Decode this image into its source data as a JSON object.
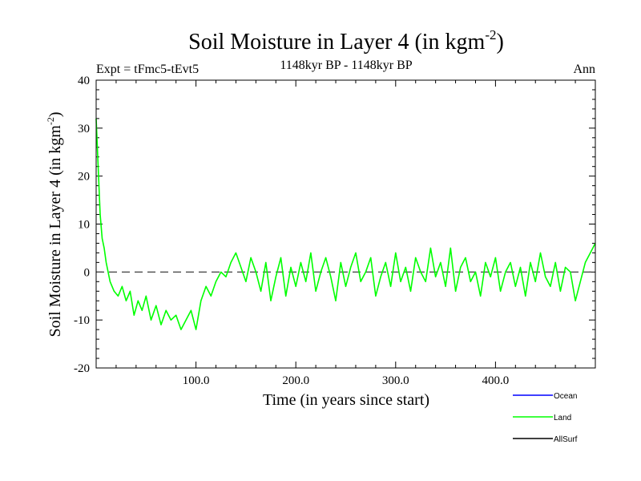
{
  "chart_data": {
    "type": "line",
    "title_main": "Soil Moisture in Layer 4 (in kgm",
    "title_sup": "-2",
    "title_close": ")",
    "subtitle": "1148kyr BP - 1148kyr BP",
    "expt_label": "Expt = tFmc5-tEvt5",
    "season_label": "Ann",
    "xlabel": "Time (in years since start)",
    "ylabel_main": "Soil Moisture in Layer 4 (in kgm",
    "ylabel_sup": "-2",
    "ylabel_close": ")",
    "xlim": [
      0,
      500
    ],
    "ylim": [
      -20,
      40
    ],
    "x_ticks": [
      100,
      200,
      300,
      400
    ],
    "x_tick_labels": [
      "100.0",
      "200.0",
      "300.0",
      "400.0"
    ],
    "y_ticks": [
      -20,
      -10,
      0,
      10,
      20,
      30,
      40
    ],
    "y_tick_labels": [
      "-20",
      "-10",
      "0",
      "10",
      "20",
      "30",
      "40"
    ],
    "zero_line": true,
    "legend": [
      {
        "name": "Ocean",
        "color": "#0000ff"
      },
      {
        "name": "Land",
        "color": "#00ff00"
      },
      {
        "name": "AllSurf",
        "color": "#000000"
      }
    ],
    "series": [
      {
        "name": "Land",
        "color": "#00ff00",
        "x": [
          0,
          2,
          4,
          6,
          8,
          10,
          14,
          18,
          22,
          26,
          30,
          34,
          38,
          42,
          46,
          50,
          55,
          60,
          65,
          70,
          75,
          80,
          85,
          90,
          95,
          100,
          105,
          110,
          115,
          120,
          125,
          130,
          135,
          140,
          145,
          150,
          155,
          160,
          165,
          170,
          175,
          180,
          185,
          190,
          195,
          200,
          205,
          210,
          215,
          220,
          225,
          230,
          235,
          240,
          245,
          250,
          255,
          260,
          265,
          270,
          275,
          280,
          285,
          290,
          295,
          300,
          305,
          310,
          315,
          320,
          325,
          330,
          335,
          340,
          345,
          350,
          355,
          360,
          365,
          370,
          375,
          380,
          385,
          390,
          395,
          400,
          405,
          410,
          415,
          420,
          425,
          430,
          435,
          440,
          445,
          450,
          455,
          460,
          465,
          470,
          475,
          480,
          485,
          490,
          495,
          500
        ],
        "values": [
          32,
          22,
          12,
          7,
          5,
          2,
          -2,
          -4,
          -5,
          -3,
          -6,
          -4,
          -9,
          -6,
          -8,
          -5,
          -10,
          -7,
          -11,
          -8,
          -10,
          -9,
          -12,
          -10,
          -8,
          -12,
          -6,
          -3,
          -5,
          -2,
          0,
          -1,
          2,
          4,
          1,
          -2,
          3,
          0,
          -4,
          2,
          -6,
          -1,
          3,
          -5,
          1,
          -3,
          2,
          -2,
          4,
          -4,
          0,
          3,
          -1,
          -6,
          2,
          -3,
          1,
          4,
          -2,
          0,
          3,
          -5,
          -1,
          2,
          -3,
          4,
          -2,
          1,
          -4,
          3,
          0,
          -2,
          5,
          -1,
          2,
          -3,
          5,
          -4,
          1,
          3,
          -2,
          0,
          -5,
          2,
          -1,
          3,
          -4,
          0,
          2,
          -3,
          1,
          -5,
          2,
          -2,
          4,
          -1,
          -3,
          2,
          -4,
          1,
          0,
          -6,
          -2,
          2,
          4,
          6
        ]
      }
    ]
  }
}
